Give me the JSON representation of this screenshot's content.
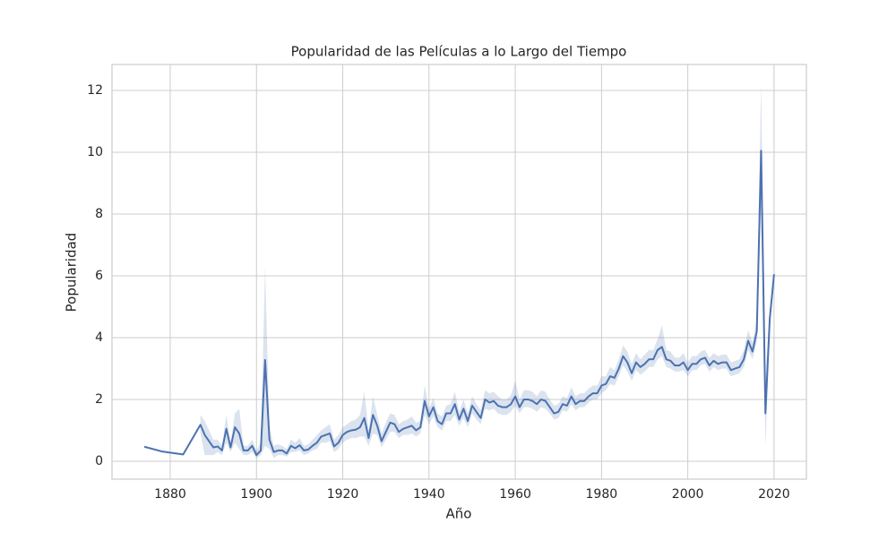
{
  "chart_data": {
    "type": "line",
    "title": "Popularidad de las Películas a lo Largo del Tiempo",
    "x_label": "Año",
    "y_label": "Popularidad",
    "x": [
      1874,
      1878,
      1883,
      1887,
      1888,
      1889,
      1890,
      1891,
      1892,
      1893,
      1894,
      1895,
      1896,
      1897,
      1898,
      1899,
      1900,
      1901,
      1902,
      1903,
      1904,
      1905,
      1906,
      1907,
      1908,
      1909,
      1910,
      1911,
      1912,
      1913,
      1914,
      1915,
      1916,
      1917,
      1918,
      1919,
      1920,
      1921,
      1922,
      1923,
      1924,
      1925,
      1926,
      1927,
      1928,
      1929,
      1930,
      1931,
      1932,
      1933,
      1934,
      1935,
      1936,
      1937,
      1938,
      1939,
      1940,
      1941,
      1942,
      1943,
      1944,
      1945,
      1946,
      1947,
      1948,
      1949,
      1950,
      1951,
      1952,
      1953,
      1954,
      1955,
      1956,
      1957,
      1958,
      1959,
      1960,
      1961,
      1962,
      1963,
      1964,
      1965,
      1966,
      1967,
      1968,
      1969,
      1970,
      1971,
      1972,
      1973,
      1974,
      1975,
      1976,
      1977,
      1978,
      1979,
      1980,
      1981,
      1982,
      1983,
      1984,
      1985,
      1986,
      1987,
      1988,
      1989,
      1990,
      1991,
      1992,
      1993,
      1994,
      1995,
      1996,
      1997,
      1998,
      1999,
      2000,
      2001,
      2002,
      2003,
      2004,
      2005,
      2006,
      2007,
      2008,
      2009,
      2010,
      2011,
      2012,
      2013,
      2014,
      2015,
      2016,
      2017,
      2018,
      2019,
      2020
    ],
    "series": [
      {
        "color": "#4c72b0",
        "values": [
          0.47,
          0.32,
          0.22,
          1.18,
          0.85,
          0.65,
          0.45,
          0.48,
          0.35,
          1.05,
          0.45,
          1.1,
          0.9,
          0.35,
          0.35,
          0.5,
          0.2,
          0.35,
          3.28,
          0.7,
          0.3,
          0.35,
          0.35,
          0.25,
          0.5,
          0.42,
          0.52,
          0.35,
          0.38,
          0.5,
          0.6,
          0.8,
          0.85,
          0.9,
          0.48,
          0.6,
          0.85,
          0.95,
          1.0,
          1.02,
          1.1,
          1.4,
          0.75,
          1.5,
          1.15,
          0.65,
          0.95,
          1.25,
          1.2,
          0.95,
          1.05,
          1.1,
          1.15,
          1.0,
          1.1,
          1.95,
          1.45,
          1.75,
          1.3,
          1.2,
          1.55,
          1.55,
          1.85,
          1.35,
          1.7,
          1.3,
          1.8,
          1.6,
          1.4,
          2.0,
          1.9,
          1.95,
          1.8,
          1.75,
          1.75,
          1.85,
          2.1,
          1.75,
          2.0,
          2.0,
          1.95,
          1.85,
          2.0,
          1.95,
          1.75,
          1.55,
          1.6,
          1.85,
          1.8,
          2.1,
          1.85,
          1.95,
          1.95,
          2.1,
          2.2,
          2.2,
          2.45,
          2.5,
          2.75,
          2.7,
          3.0,
          3.4,
          3.2,
          2.85,
          3.2,
          3.05,
          3.15,
          3.3,
          3.3,
          3.6,
          3.7,
          3.3,
          3.25,
          3.1,
          3.1,
          3.2,
          2.95,
          3.15,
          3.15,
          3.3,
          3.35,
          3.1,
          3.25,
          3.15,
          3.2,
          3.2,
          2.95,
          3.0,
          3.05,
          3.3,
          3.9,
          3.55,
          4.2,
          10.05,
          1.55,
          4.6,
          6.05
        ],
        "lower": [
          null,
          null,
          null,
          0.9,
          0.2,
          0.2,
          0.2,
          0.3,
          0.2,
          0.6,
          0.3,
          0.6,
          0.4,
          0.2,
          0.2,
          0.3,
          0.1,
          0.2,
          0.5,
          0.4,
          0.1,
          0.2,
          0.2,
          0.15,
          0.3,
          0.3,
          0.35,
          0.2,
          0.25,
          0.35,
          0.4,
          0.6,
          0.6,
          0.65,
          0.3,
          0.4,
          0.6,
          0.7,
          0.75,
          0.75,
          0.8,
          0.8,
          0.5,
          0.9,
          0.85,
          0.45,
          0.7,
          0.95,
          0.95,
          0.75,
          0.85,
          0.85,
          0.9,
          0.8,
          0.9,
          1.5,
          1.2,
          1.45,
          1.1,
          1.0,
          1.3,
          1.3,
          1.5,
          1.15,
          1.4,
          1.1,
          1.55,
          1.35,
          1.2,
          1.7,
          1.65,
          1.7,
          1.55,
          1.5,
          1.5,
          1.6,
          1.8,
          1.55,
          1.75,
          1.75,
          1.7,
          1.6,
          1.75,
          1.7,
          1.55,
          1.35,
          1.4,
          1.65,
          1.6,
          1.85,
          1.65,
          1.75,
          1.75,
          1.9,
          2.0,
          2.0,
          2.2,
          2.3,
          2.5,
          2.45,
          2.75,
          3.1,
          2.9,
          2.6,
          2.95,
          2.8,
          2.9,
          3.05,
          3.05,
          3.3,
          3.4,
          3.05,
          3.0,
          2.9,
          2.9,
          2.95,
          2.75,
          2.95,
          2.95,
          3.1,
          3.15,
          2.9,
          3.05,
          2.95,
          3.0,
          3.0,
          2.75,
          2.8,
          2.85,
          3.05,
          3.6,
          3.3,
          3.85,
          8.2,
          0.5,
          4.2,
          null
        ],
        "upper": [
          null,
          null,
          null,
          1.5,
          1.3,
          1.0,
          0.7,
          0.7,
          0.5,
          1.5,
          0.6,
          1.55,
          1.7,
          0.5,
          0.5,
          0.7,
          0.35,
          0.6,
          6.3,
          1.1,
          0.5,
          0.55,
          0.5,
          0.4,
          0.7,
          0.6,
          0.75,
          0.5,
          0.55,
          0.7,
          0.85,
          1.0,
          1.1,
          1.2,
          0.7,
          0.85,
          1.1,
          1.2,
          1.3,
          1.35,
          1.5,
          2.25,
          1.0,
          2.1,
          1.5,
          0.9,
          1.25,
          1.55,
          1.5,
          1.2,
          1.3,
          1.35,
          1.45,
          1.25,
          1.3,
          2.45,
          1.7,
          2.05,
          1.55,
          1.45,
          1.8,
          1.85,
          2.25,
          1.6,
          2.0,
          1.55,
          2.1,
          1.85,
          1.65,
          2.3,
          2.2,
          2.25,
          2.1,
          2.0,
          2.0,
          2.15,
          2.6,
          2.0,
          2.3,
          2.3,
          2.25,
          2.1,
          2.3,
          2.25,
          2.0,
          1.8,
          1.85,
          2.1,
          2.05,
          2.4,
          2.1,
          2.2,
          2.2,
          2.35,
          2.45,
          2.45,
          2.75,
          2.75,
          3.05,
          2.95,
          3.3,
          3.75,
          3.55,
          3.15,
          3.5,
          3.3,
          3.45,
          3.6,
          3.6,
          3.95,
          4.4,
          3.6,
          3.55,
          3.35,
          3.35,
          3.5,
          3.2,
          3.4,
          3.4,
          3.55,
          3.6,
          3.35,
          3.5,
          3.4,
          3.45,
          3.45,
          3.2,
          3.25,
          3.3,
          3.6,
          4.25,
          3.85,
          4.6,
          12.25,
          2.6,
          5.0,
          null
        ]
      }
    ],
    "xlim": [
      1866.5,
      2027.5
    ],
    "ylim": [
      -0.58,
      12.84
    ],
    "xticks": [
      1880,
      1900,
      1920,
      1940,
      1960,
      1980,
      2000,
      2020
    ],
    "yticks": [
      0,
      2,
      4,
      6,
      8,
      10,
      12
    ],
    "grid": true
  }
}
